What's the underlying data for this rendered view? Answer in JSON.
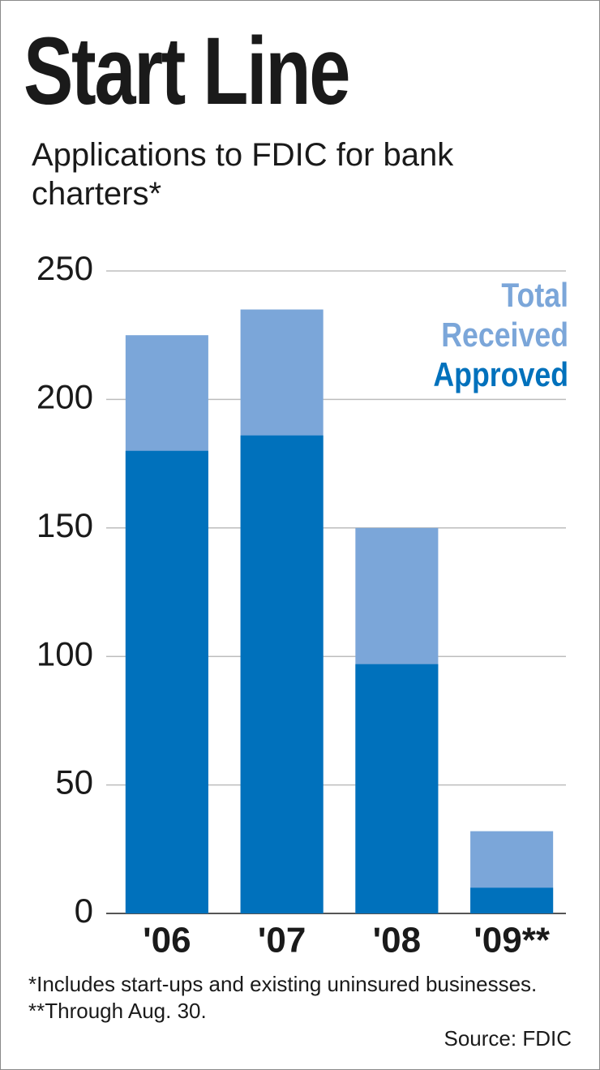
{
  "chart_data": {
    "type": "bar",
    "barmode": "overlay",
    "title": "Start Line",
    "subtitle": "Applications to FDIC for bank charters*",
    "categories": [
      "'06",
      "'07",
      "'08",
      "'09**"
    ],
    "series": [
      {
        "name": "Total Received",
        "color": "#7ba6d9",
        "values": [
          225,
          235,
          150,
          32
        ]
      },
      {
        "name": "Approved",
        "color": "#0071bc",
        "values": [
          180,
          186,
          97,
          10
        ]
      }
    ],
    "ylim": [
      0,
      250
    ],
    "yticks": [
      0,
      50,
      100,
      150,
      200,
      250
    ],
    "grid": true,
    "legend": "top-right",
    "footnote": "*Includes start-ups and existing uninsured businesses. **Through Aug. 30.",
    "source": "Source: FDIC"
  }
}
